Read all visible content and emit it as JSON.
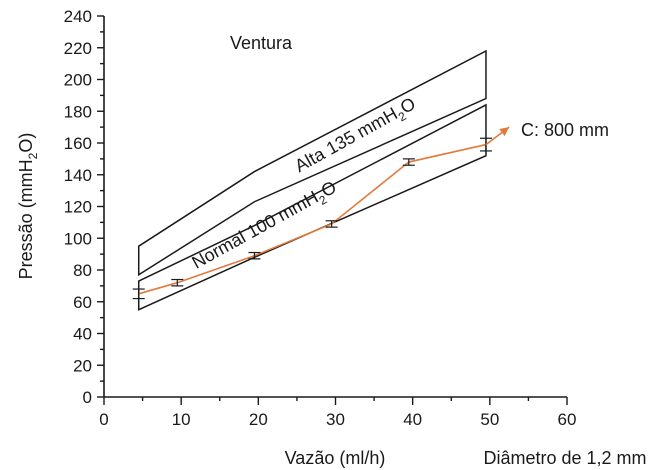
{
  "chart_data": {
    "type": "line",
    "title": "Ventura",
    "xlabel": "Vazão (ml/h)",
    "xlabel_secondary": "Diâmetro de 1,2 mm",
    "ylabel_parts": [
      "Pressão (mmH",
      "2",
      "O)"
    ],
    "xlim": [
      0,
      60
    ],
    "ylim": [
      0,
      240
    ],
    "xticks": [
      0,
      10,
      20,
      30,
      40,
      50,
      60
    ],
    "yticks": [
      0,
      20,
      40,
      60,
      80,
      100,
      120,
      140,
      160,
      180,
      200,
      220,
      240
    ],
    "bands": [
      {
        "label_parts": [
          "Alta 135 mmH",
          "2",
          "O"
        ],
        "upper": [
          [
            4.5,
            95
          ],
          [
            19.5,
            142
          ],
          [
            49.5,
            218
          ]
        ],
        "lower": [
          [
            4.5,
            77
          ],
          [
            19.5,
            123
          ],
          [
            49.5,
            188
          ]
        ]
      },
      {
        "label_parts": [
          "Normal 100 mmH",
          "2",
          "O"
        ],
        "upper": [
          [
            4.5,
            73
          ],
          [
            19.5,
            108
          ],
          [
            49.5,
            184
          ]
        ],
        "lower": [
          [
            4.5,
            55
          ],
          [
            19.5,
            88
          ],
          [
            49.5,
            152
          ]
        ]
      }
    ],
    "series": [
      {
        "name": "C: 800 mm",
        "color": "#e07b3c",
        "x": [
          4.5,
          9.5,
          19.5,
          29.5,
          39.5,
          49.5
        ],
        "y": [
          65,
          72,
          89,
          109,
          148,
          159
        ],
        "err": [
          3,
          2,
          2,
          2,
          2,
          4
        ],
        "arrow_to": [
          52.5,
          170
        ]
      }
    ]
  }
}
